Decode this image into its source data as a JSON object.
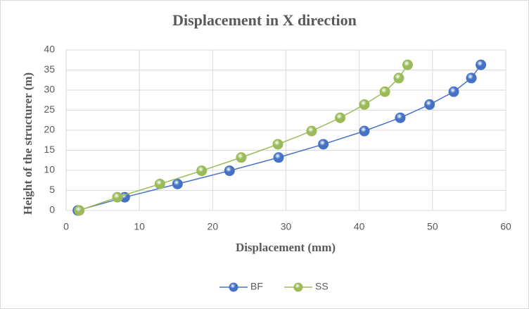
{
  "chart_data": {
    "type": "scatter",
    "lines": true,
    "title": "Displacement in X direction",
    "x_label": "Displacement (mm)",
    "y_label": "Height of the structurer  (m)",
    "xlim": [
      0,
      60
    ],
    "xticks": [
      0,
      10,
      20,
      30,
      40,
      50,
      60
    ],
    "ylim": [
      0,
      40
    ],
    "yticks": [
      0,
      5,
      10,
      15,
      20,
      25,
      30,
      35,
      40
    ],
    "grid": true,
    "legend": "bottom",
    "series": [
      {
        "name": "BF",
        "color": "#4472c4",
        "x": [
          1.6,
          8.0,
          15.2,
          22.3,
          29.0,
          35.1,
          40.7,
          45.6,
          49.6,
          52.9,
          55.3,
          56.6
        ],
        "values": [
          0,
          3.3,
          6.6,
          9.9,
          13.2,
          16.5,
          19.8,
          23.1,
          26.4,
          29.6,
          33.0,
          36.3
        ]
      },
      {
        "name": "SS",
        "color": "#9bbb59",
        "x": [
          1.8,
          7.0,
          12.8,
          18.5,
          23.9,
          28.9,
          33.5,
          37.4,
          40.7,
          43.5,
          45.4,
          46.6
        ],
        "values": [
          0,
          3.3,
          6.6,
          9.9,
          13.2,
          16.5,
          19.8,
          23.1,
          26.4,
          29.6,
          33.0,
          36.3
        ]
      }
    ]
  }
}
